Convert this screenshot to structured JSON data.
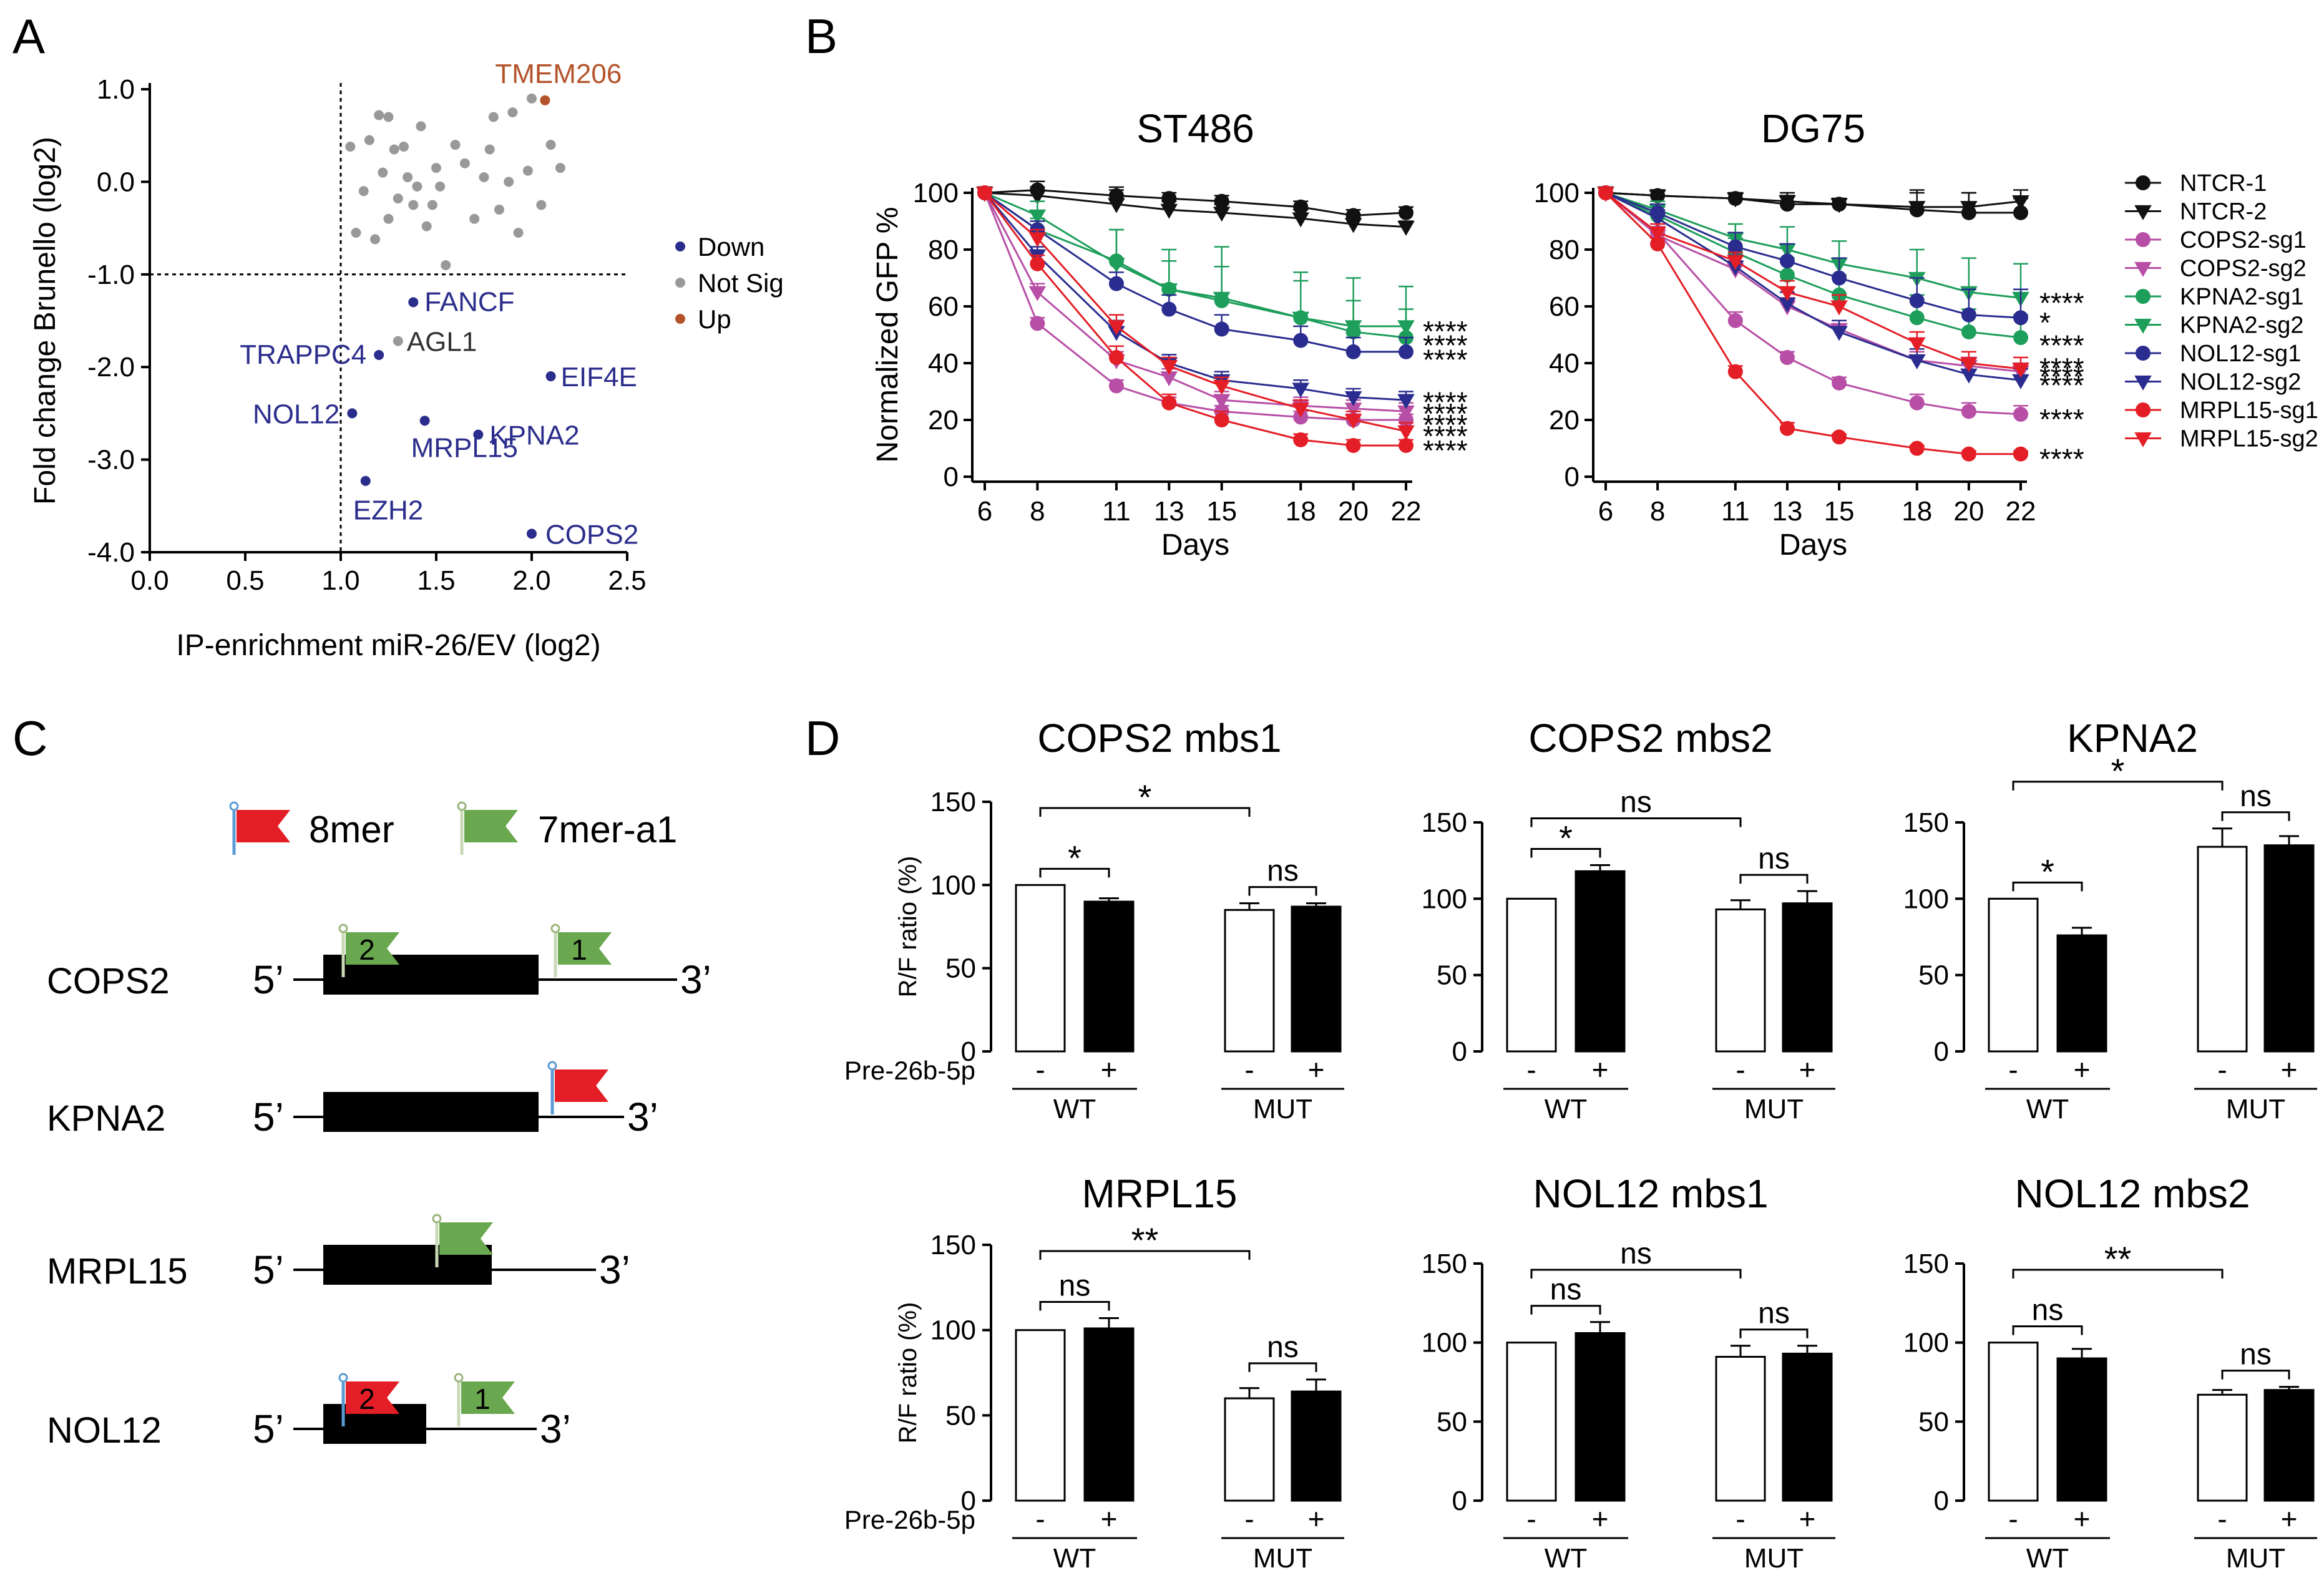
{
  "panels": {
    "A": "A",
    "B": "B",
    "C": "C",
    "D": "D"
  },
  "chart_data": [
    {
      "id": "A",
      "type": "scatter",
      "title": "",
      "xlabel": "IP-enrichment miR-26/EV (log2)",
      "ylabel": "Fold change Brunello (log2)",
      "xlim": [
        0.0,
        2.5
      ],
      "ylim": [
        -4.0,
        1.0
      ],
      "xticks": [
        "0.0",
        "0.5",
        "1.0",
        "1.5",
        "2.0",
        "2.5"
      ],
      "yticks": [
        "1.0",
        "0.0",
        "-1.0",
        "-2.0",
        "-3.0",
        "-4.0"
      ],
      "xtick_values": [
        0,
        0.5,
        1.0,
        1.5,
        2.0,
        2.5
      ],
      "ytick_values": [
        1,
        0,
        -1,
        -2,
        -3,
        -4
      ],
      "thresholds": {
        "x": 1.0,
        "y": -1.0
      },
      "legend": [
        {
          "name": "Down",
          "color": "#2b2d8c"
        },
        {
          "name": "Not Sig",
          "color": "#999999"
        },
        {
          "name": "Up",
          "color": "#b4532a"
        }
      ],
      "labeled_points": [
        {
          "label": "TMEM206",
          "x": 2.07,
          "y": 0.88,
          "group": "Up"
        },
        {
          "label": "FANCF",
          "x": 1.38,
          "y": -1.3,
          "group": "Down"
        },
        {
          "label": "AGL1",
          "x": 1.3,
          "y": -1.72,
          "group": "Not Sig"
        },
        {
          "label": "TRAPPC4",
          "x": 1.2,
          "y": -1.87,
          "group": "Down"
        },
        {
          "label": "EIF4E",
          "x": 2.1,
          "y": -2.1,
          "group": "Down"
        },
        {
          "label": "NOL12",
          "x": 1.06,
          "y": -2.5,
          "group": "Down"
        },
        {
          "label": "MRPL15",
          "x": 1.44,
          "y": -2.58,
          "group": "Down"
        },
        {
          "label": "KPNA2",
          "x": 1.72,
          "y": -2.73,
          "group": "Down"
        },
        {
          "label": "EZH2",
          "x": 1.13,
          "y": -3.23,
          "group": "Down"
        },
        {
          "label": "COPS2",
          "x": 2.0,
          "y": -3.8,
          "group": "Down"
        }
      ],
      "not_sig_points": [
        [
          1.05,
          0.38
        ],
        [
          1.08,
          -0.55
        ],
        [
          1.12,
          -0.1
        ],
        [
          1.15,
          0.45
        ],
        [
          1.18,
          -0.62
        ],
        [
          1.2,
          0.72
        ],
        [
          1.22,
          0.1
        ],
        [
          1.25,
          0.7
        ],
        [
          1.25,
          -0.4
        ],
        [
          1.28,
          0.35
        ],
        [
          1.3,
          -0.18
        ],
        [
          1.33,
          0.38
        ],
        [
          1.35,
          0.05
        ],
        [
          1.38,
          -0.25
        ],
        [
          1.4,
          -0.05
        ],
        [
          1.42,
          0.6
        ],
        [
          1.45,
          -0.48
        ],
        [
          1.48,
          -0.25
        ],
        [
          1.5,
          0.15
        ],
        [
          1.52,
          -0.05
        ],
        [
          1.55,
          -0.9
        ],
        [
          1.6,
          0.4
        ],
        [
          1.65,
          0.2
        ],
        [
          1.7,
          -0.4
        ],
        [
          1.75,
          0.05
        ],
        [
          1.78,
          0.35
        ],
        [
          1.8,
          0.7
        ],
        [
          1.83,
          -0.3
        ],
        [
          1.88,
          0.0
        ],
        [
          1.9,
          0.75
        ],
        [
          1.93,
          -0.55
        ],
        [
          1.98,
          0.12
        ],
        [
          2.0,
          0.9
        ],
        [
          2.05,
          -0.25
        ],
        [
          2.1,
          0.4
        ],
        [
          2.15,
          0.15
        ]
      ]
    },
    {
      "id": "B1",
      "type": "line",
      "title": "ST486",
      "xlabel": "Days",
      "ylabel": "Normalized GFP %",
      "x": [
        6,
        8,
        11,
        13,
        15,
        18,
        20,
        22
      ],
      "ylim": [
        0,
        100
      ],
      "yticks": [
        "0",
        "20",
        "40",
        "60",
        "80",
        "100"
      ],
      "series": [
        {
          "name": "NTCR-1",
          "color": "#111111",
          "marker": "circle",
          "values": [
            100,
            101,
            99,
            98,
            97,
            95,
            92,
            93
          ],
          "err": [
            2,
            3,
            3,
            2,
            2,
            2,
            2,
            2
          ]
        },
        {
          "name": "NTCR-2",
          "color": "#111111",
          "marker": "tri-down",
          "values": [
            100,
            99,
            96,
            94,
            93,
            91,
            89,
            88
          ],
          "err": [
            2,
            3,
            5,
            3,
            3,
            3,
            2,
            2
          ]
        },
        {
          "name": "COPS2-sg1",
          "color": "#b84fa6",
          "marker": "circle",
          "values": [
            100,
            54,
            32,
            26,
            23,
            21,
            20,
            20
          ],
          "err": [
            0,
            2,
            2,
            2,
            2,
            2,
            2,
            2
          ]
        },
        {
          "name": "COPS2-sg2",
          "color": "#b84fa6",
          "marker": "tri-down",
          "values": [
            100,
            65,
            41,
            35,
            27,
            25,
            24,
            23
          ],
          "err": [
            0,
            3,
            3,
            3,
            3,
            3,
            3,
            3
          ]
        },
        {
          "name": "KPNA2-sg1",
          "color": "#1e9e5b",
          "marker": "circle",
          "values": [
            100,
            87,
            76,
            66,
            62,
            56,
            51,
            49
          ],
          "err": [
            0,
            4,
            11,
            10,
            12,
            13,
            11,
            10
          ]
        },
        {
          "name": "KPNA2-sg2",
          "color": "#1e9e5b",
          "marker": "tri-down",
          "values": [
            100,
            92,
            75,
            66,
            63,
            56,
            53,
            53
          ],
          "err": [
            0,
            5,
            12,
            14,
            18,
            16,
            17,
            14
          ]
        },
        {
          "name": "NOL12-sg1",
          "color": "#2a2d8f",
          "marker": "circle",
          "values": [
            100,
            87,
            68,
            59,
            52,
            48,
            44,
            44
          ],
          "err": [
            0,
            3,
            4,
            5,
            5,
            5,
            5,
            5
          ]
        },
        {
          "name": "NOL12-sg2",
          "color": "#2a2d8f",
          "marker": "tri-down",
          "values": [
            100,
            78,
            51,
            40,
            34,
            31,
            28,
            27
          ],
          "err": [
            0,
            3,
            4,
            3,
            3,
            3,
            3,
            3
          ]
        },
        {
          "name": "MRPL15-sg1",
          "color": "#e41e26",
          "marker": "circle",
          "values": [
            100,
            75,
            42,
            26,
            20,
            13,
            11,
            11
          ],
          "err": [
            0,
            3,
            4,
            3,
            3,
            2,
            2,
            2
          ]
        },
        {
          "name": "MRPL15-sg2",
          "color": "#e41e26",
          "marker": "tri-down",
          "values": [
            100,
            84,
            53,
            39,
            32,
            24,
            20,
            16
          ],
          "err": [
            0,
            3,
            4,
            3,
            3,
            3,
            3,
            3
          ]
        }
      ],
      "annotations": [
        "****",
        "****",
        "****",
        "****",
        "****",
        "****",
        "****",
        "****"
      ],
      "annotation_y": [
        53,
        48,
        43,
        28,
        24,
        20,
        16,
        11
      ]
    },
    {
      "id": "B2",
      "type": "line",
      "title": "DG75",
      "xlabel": "Days",
      "ylabel": "",
      "x": [
        6,
        8,
        11,
        13,
        15,
        18,
        20,
        22
      ],
      "ylim": [
        0,
        100
      ],
      "yticks": [
        "0",
        "20",
        "40",
        "60",
        "80",
        "100"
      ],
      "series": [
        {
          "name": "NTCR-1",
          "color": "#111111",
          "marker": "circle",
          "values": [
            100,
            99,
            98,
            96,
            96,
            94,
            93,
            93
          ],
          "err": [
            2,
            2,
            2,
            3,
            2,
            7,
            7,
            5
          ]
        },
        {
          "name": "NTCR-2",
          "color": "#111111",
          "marker": "tri-down",
          "values": [
            100,
            99,
            98,
            97,
            96,
            95,
            95,
            97
          ],
          "err": [
            2,
            2,
            2,
            3,
            2,
            5,
            5,
            4
          ]
        },
        {
          "name": "COPS2-sg1",
          "color": "#b84fa6",
          "marker": "circle",
          "values": [
            100,
            86,
            55,
            42,
            33,
            26,
            23,
            22
          ],
          "err": [
            0,
            2,
            3,
            2,
            2,
            3,
            3,
            3
          ]
        },
        {
          "name": "COPS2-sg2",
          "color": "#b84fa6",
          "marker": "tri-down",
          "values": [
            100,
            85,
            73,
            60,
            52,
            41,
            39,
            37
          ],
          "err": [
            0,
            3,
            3,
            3,
            3,
            3,
            3,
            3
          ]
        },
        {
          "name": "KPNA2-sg1",
          "color": "#1e9e5b",
          "marker": "circle",
          "values": [
            100,
            92,
            79,
            71,
            64,
            56,
            51,
            49
          ],
          "err": [
            0,
            3,
            5,
            6,
            7,
            8,
            8,
            8
          ]
        },
        {
          "name": "KPNA2-sg2",
          "color": "#1e9e5b",
          "marker": "tri-down",
          "values": [
            100,
            94,
            84,
            80,
            75,
            70,
            65,
            63
          ],
          "err": [
            0,
            3,
            5,
            8,
            8,
            10,
            12,
            12
          ]
        },
        {
          "name": "NOL12-sg1",
          "color": "#2a2d8f",
          "marker": "circle",
          "values": [
            100,
            93,
            81,
            76,
            70,
            62,
            57,
            56
          ],
          "err": [
            0,
            3,
            5,
            6,
            7,
            8,
            9,
            10
          ]
        },
        {
          "name": "NOL12-sg2",
          "color": "#2a2d8f",
          "marker": "tri-down",
          "values": [
            100,
            91,
            74,
            61,
            51,
            41,
            36,
            34
          ],
          "err": [
            0,
            3,
            4,
            4,
            4,
            4,
            4,
            4
          ]
        },
        {
          "name": "MRPL15-sg1",
          "color": "#e41e26",
          "marker": "circle",
          "values": [
            100,
            82,
            37,
            17,
            14,
            10,
            8,
            8
          ],
          "err": [
            0,
            2,
            2,
            2,
            1,
            1,
            1,
            1
          ]
        },
        {
          "name": "MRPL15-sg2",
          "color": "#e41e26",
          "marker": "tri-down",
          "values": [
            100,
            86,
            76,
            65,
            60,
            47,
            40,
            38
          ],
          "err": [
            0,
            3,
            3,
            4,
            4,
            4,
            4,
            4
          ]
        }
      ],
      "annotations": [
        "****",
        "*",
        "****",
        "****",
        "****",
        "****",
        "****",
        "****"
      ],
      "annotation_y": [
        63,
        56,
        48,
        40,
        37,
        34,
        22,
        8
      ]
    },
    {
      "id": "D1",
      "type": "bar",
      "title": "COPS2 mbs1",
      "ylabel": "R/F ratio (%)",
      "ylim": [
        0,
        150
      ],
      "yticks": [
        "0",
        "50",
        "100",
        "150"
      ],
      "categories": [
        "WT -",
        "WT +",
        "MUT -",
        "MUT +"
      ],
      "values": [
        100,
        90,
        85,
        87
      ],
      "err": [
        0,
        2,
        4,
        2
      ],
      "comparisons": [
        {
          "from": 0,
          "to": 1,
          "label": "*"
        },
        {
          "from": 0,
          "to": 2,
          "label": "*"
        },
        {
          "from": 2,
          "to": 3,
          "label": "ns"
        }
      ]
    },
    {
      "id": "D2",
      "type": "bar",
      "title": "COPS2 mbs2",
      "ylabel": "",
      "ylim": [
        0,
        150
      ],
      "yticks": [
        "0",
        "50",
        "100",
        "150"
      ],
      "categories": [
        "WT -",
        "WT +",
        "MUT -",
        "MUT +"
      ],
      "values": [
        100,
        118,
        93,
        97
      ],
      "err": [
        0,
        4,
        6,
        8
      ],
      "comparisons": [
        {
          "from": 0,
          "to": 1,
          "label": "*"
        },
        {
          "from": 0,
          "to": 2,
          "label": "ns"
        },
        {
          "from": 2,
          "to": 3,
          "label": "ns"
        }
      ]
    },
    {
      "id": "D3",
      "type": "bar",
      "title": "KPNA2",
      "ylabel": "",
      "ylim": [
        0,
        150
      ],
      "yticks": [
        "0",
        "50",
        "100",
        "150"
      ],
      "categories": [
        "WT -",
        "WT +",
        "MUT -",
        "MUT +"
      ],
      "values": [
        100,
        76,
        134,
        135
      ],
      "err": [
        0,
        5,
        12,
        6
      ],
      "comparisons": [
        {
          "from": 0,
          "to": 1,
          "label": "*"
        },
        {
          "from": 0,
          "to": 2,
          "label": "*"
        },
        {
          "from": 2,
          "to": 3,
          "label": "ns"
        }
      ]
    },
    {
      "id": "D4",
      "type": "bar",
      "title": "MRPL15",
      "ylabel": "R/F ratio (%)",
      "ylim": [
        0,
        150
      ],
      "yticks": [
        "0",
        "50",
        "100",
        "150"
      ],
      "categories": [
        "WT -",
        "WT +",
        "MUT -",
        "MUT +"
      ],
      "values": [
        100,
        101,
        60,
        64
      ],
      "err": [
        0,
        6,
        6,
        7
      ],
      "comparisons": [
        {
          "from": 0,
          "to": 1,
          "label": "ns"
        },
        {
          "from": 0,
          "to": 2,
          "label": "**"
        },
        {
          "from": 2,
          "to": 3,
          "label": "ns"
        }
      ]
    },
    {
      "id": "D5",
      "type": "bar",
      "title": "NOL12 mbs1",
      "ylabel": "",
      "ylim": [
        0,
        150
      ],
      "yticks": [
        "0",
        "50",
        "100",
        "150"
      ],
      "categories": [
        "WT -",
        "WT +",
        "MUT -",
        "MUT +"
      ],
      "values": [
        100,
        106,
        91,
        93
      ],
      "err": [
        0,
        7,
        7,
        5
      ],
      "comparisons": [
        {
          "from": 0,
          "to": 1,
          "label": "ns"
        },
        {
          "from": 0,
          "to": 2,
          "label": "ns"
        },
        {
          "from": 2,
          "to": 3,
          "label": "ns"
        }
      ]
    },
    {
      "id": "D6",
      "type": "bar",
      "title": "NOL12 mbs2",
      "ylabel": "",
      "ylim": [
        0,
        150
      ],
      "yticks": [
        "0",
        "50",
        "100",
        "150"
      ],
      "categories": [
        "WT -",
        "WT +",
        "MUT -",
        "MUT +"
      ],
      "values": [
        100,
        90,
        67,
        70
      ],
      "err": [
        0,
        6,
        3,
        2
      ],
      "comparisons": [
        {
          "from": 0,
          "to": 1,
          "label": "ns"
        },
        {
          "from": 0,
          "to": 2,
          "label": "**"
        },
        {
          "from": 2,
          "to": 3,
          "label": "ns"
        }
      ]
    }
  ],
  "bar_labels": {
    "treatment": "Pre-26b-5p",
    "minus": "-",
    "plus": "+",
    "wt": "WT",
    "mut": "MUT"
  },
  "panel_c": {
    "legend": [
      {
        "name": "8mer",
        "color": "#e41e26"
      },
      {
        "name": "7mer-a1",
        "color": "#6aa84f"
      }
    ],
    "five_prime": "5’",
    "three_prime": "3’",
    "genes": [
      {
        "name": "COPS2",
        "sites": [
          {
            "type": "7mer-a1",
            "num": "2"
          },
          {
            "type": "7mer-a1",
            "num": "1"
          }
        ]
      },
      {
        "name": "KPNA2",
        "sites": [
          {
            "type": "8mer",
            "num": ""
          }
        ]
      },
      {
        "name": "MRPL15",
        "sites": [
          {
            "type": "7mer-a1",
            "num": ""
          }
        ]
      },
      {
        "name": "NOL12",
        "sites": [
          {
            "type": "8mer",
            "num": "2"
          },
          {
            "type": "7mer-a1",
            "num": "1"
          }
        ]
      }
    ]
  }
}
